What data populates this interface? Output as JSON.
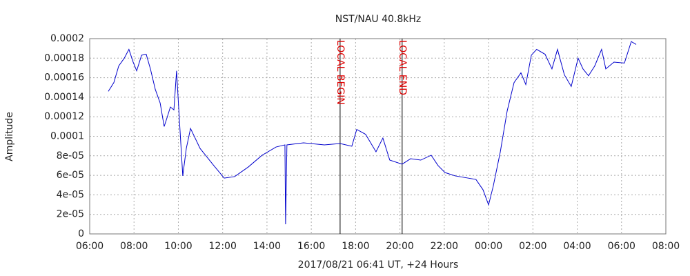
{
  "chart_data": {
    "type": "line",
    "title": "NST/NAU 40.8kHz",
    "x_label": "2017/08/21 06:41 UT, +24 Hours",
    "y_label": "Amplitude",
    "xlim": [
      6,
      32
    ],
    "xticks": [
      {
        "value": 6,
        "label": "06:00"
      },
      {
        "value": 8,
        "label": "08:00"
      },
      {
        "value": 10,
        "label": "10:00"
      },
      {
        "value": 12,
        "label": "12:00"
      },
      {
        "value": 14,
        "label": "14:00"
      },
      {
        "value": 16,
        "label": "16:00"
      },
      {
        "value": 18,
        "label": "18:00"
      },
      {
        "value": 20,
        "label": "20:00"
      },
      {
        "value": 22,
        "label": "22:00"
      },
      {
        "value": 24,
        "label": "00:00"
      },
      {
        "value": 26,
        "label": "02:00"
      },
      {
        "value": 28,
        "label": "04:00"
      },
      {
        "value": 30,
        "label": "06:00"
      },
      {
        "value": 32,
        "label": "08:00"
      }
    ],
    "ylim": [
      0,
      0.0002
    ],
    "yticks": [
      0,
      {
        "value": 2e-05,
        "label": "2e-05"
      },
      {
        "value": 4e-05,
        "label": "4e-05"
      },
      {
        "value": 6e-05,
        "label": "6e-05"
      },
      {
        "value": 8e-05,
        "label": "8e-05"
      },
      0.0001,
      0.00012,
      0.00014,
      0.00016,
      0.00018,
      0.0002
    ],
    "grid": true,
    "annotations": [
      {
        "text": "LOCAL BEGIN",
        "x": 17.3,
        "color": "#dd0000"
      },
      {
        "text": "LOCAL END",
        "x": 20.1,
        "color": "#dd0000"
      }
    ],
    "x": [
      6.84,
      7.09,
      7.31,
      7.56,
      7.77,
      7.96,
      8.12,
      8.34,
      8.55,
      8.74,
      8.96,
      9.18,
      9.36,
      9.49,
      9.64,
      9.8,
      9.92,
      10.05,
      10.2,
      10.36,
      10.55,
      10.98,
      11.6,
      12.07,
      12.54,
      13.16,
      13.78,
      14.41,
      14.81,
      14.84,
      14.9,
      15.65,
      16.59,
      17.3,
      17.83,
      18.05,
      18.45,
      18.92,
      19.23,
      19.54,
      20.1,
      20.48,
      20.94,
      21.41,
      21.72,
      22.03,
      22.5,
      23.43,
      23.75,
      24.0,
      24.21,
      24.53,
      24.84,
      25.15,
      25.46,
      25.68,
      25.93,
      26.17,
      26.55,
      26.86,
      27.11,
      27.42,
      27.73,
      28.04,
      28.26,
      28.51,
      28.79,
      29.1,
      29.29,
      29.66,
      30.13,
      30.44,
      30.66
    ],
    "series": [
      {
        "color": "#0000cc",
        "values": [
          0.000146,
          0.000155,
          0.000172,
          0.00018,
          0.000189,
          0.000176,
          0.000167,
          0.000183,
          0.000184,
          0.000169,
          0.000148,
          0.000134,
          0.00011,
          0.000119,
          0.00013,
          0.000127,
          0.000167,
          0.000116,
          5.94e-05,
          8.76e-05,
          0.000108,
          8.76e-05,
          7e-05,
          5.72e-05,
          5.87e-05,
          6.86e-05,
          8.06e-05,
          8.9e-05,
          9.12e-05,
          9.9e-06,
          9.12e-05,
          9.33e-05,
          9.12e-05,
          9.26e-05,
          8.98e-05,
          0.000107,
          0.000102,
          8.41e-05,
          9.82e-05,
          7.56e-05,
          7.14e-05,
          7.7e-05,
          7.56e-05,
          8.06e-05,
          7e-05,
          6.29e-05,
          5.94e-05,
          5.58e-05,
          4.52e-05,
          2.97e-05,
          4.88e-05,
          8.41e-05,
          0.000126,
          0.000155,
          0.000165,
          0.000153,
          0.000183,
          0.000189,
          0.000184,
          0.000169,
          0.000189,
          0.000163,
          0.000151,
          0.00018,
          0.000169,
          0.000162,
          0.000172,
          0.000189,
          0.000169,
          0.000176,
          0.000175,
          0.000197,
          0.000194
        ]
      }
    ]
  }
}
